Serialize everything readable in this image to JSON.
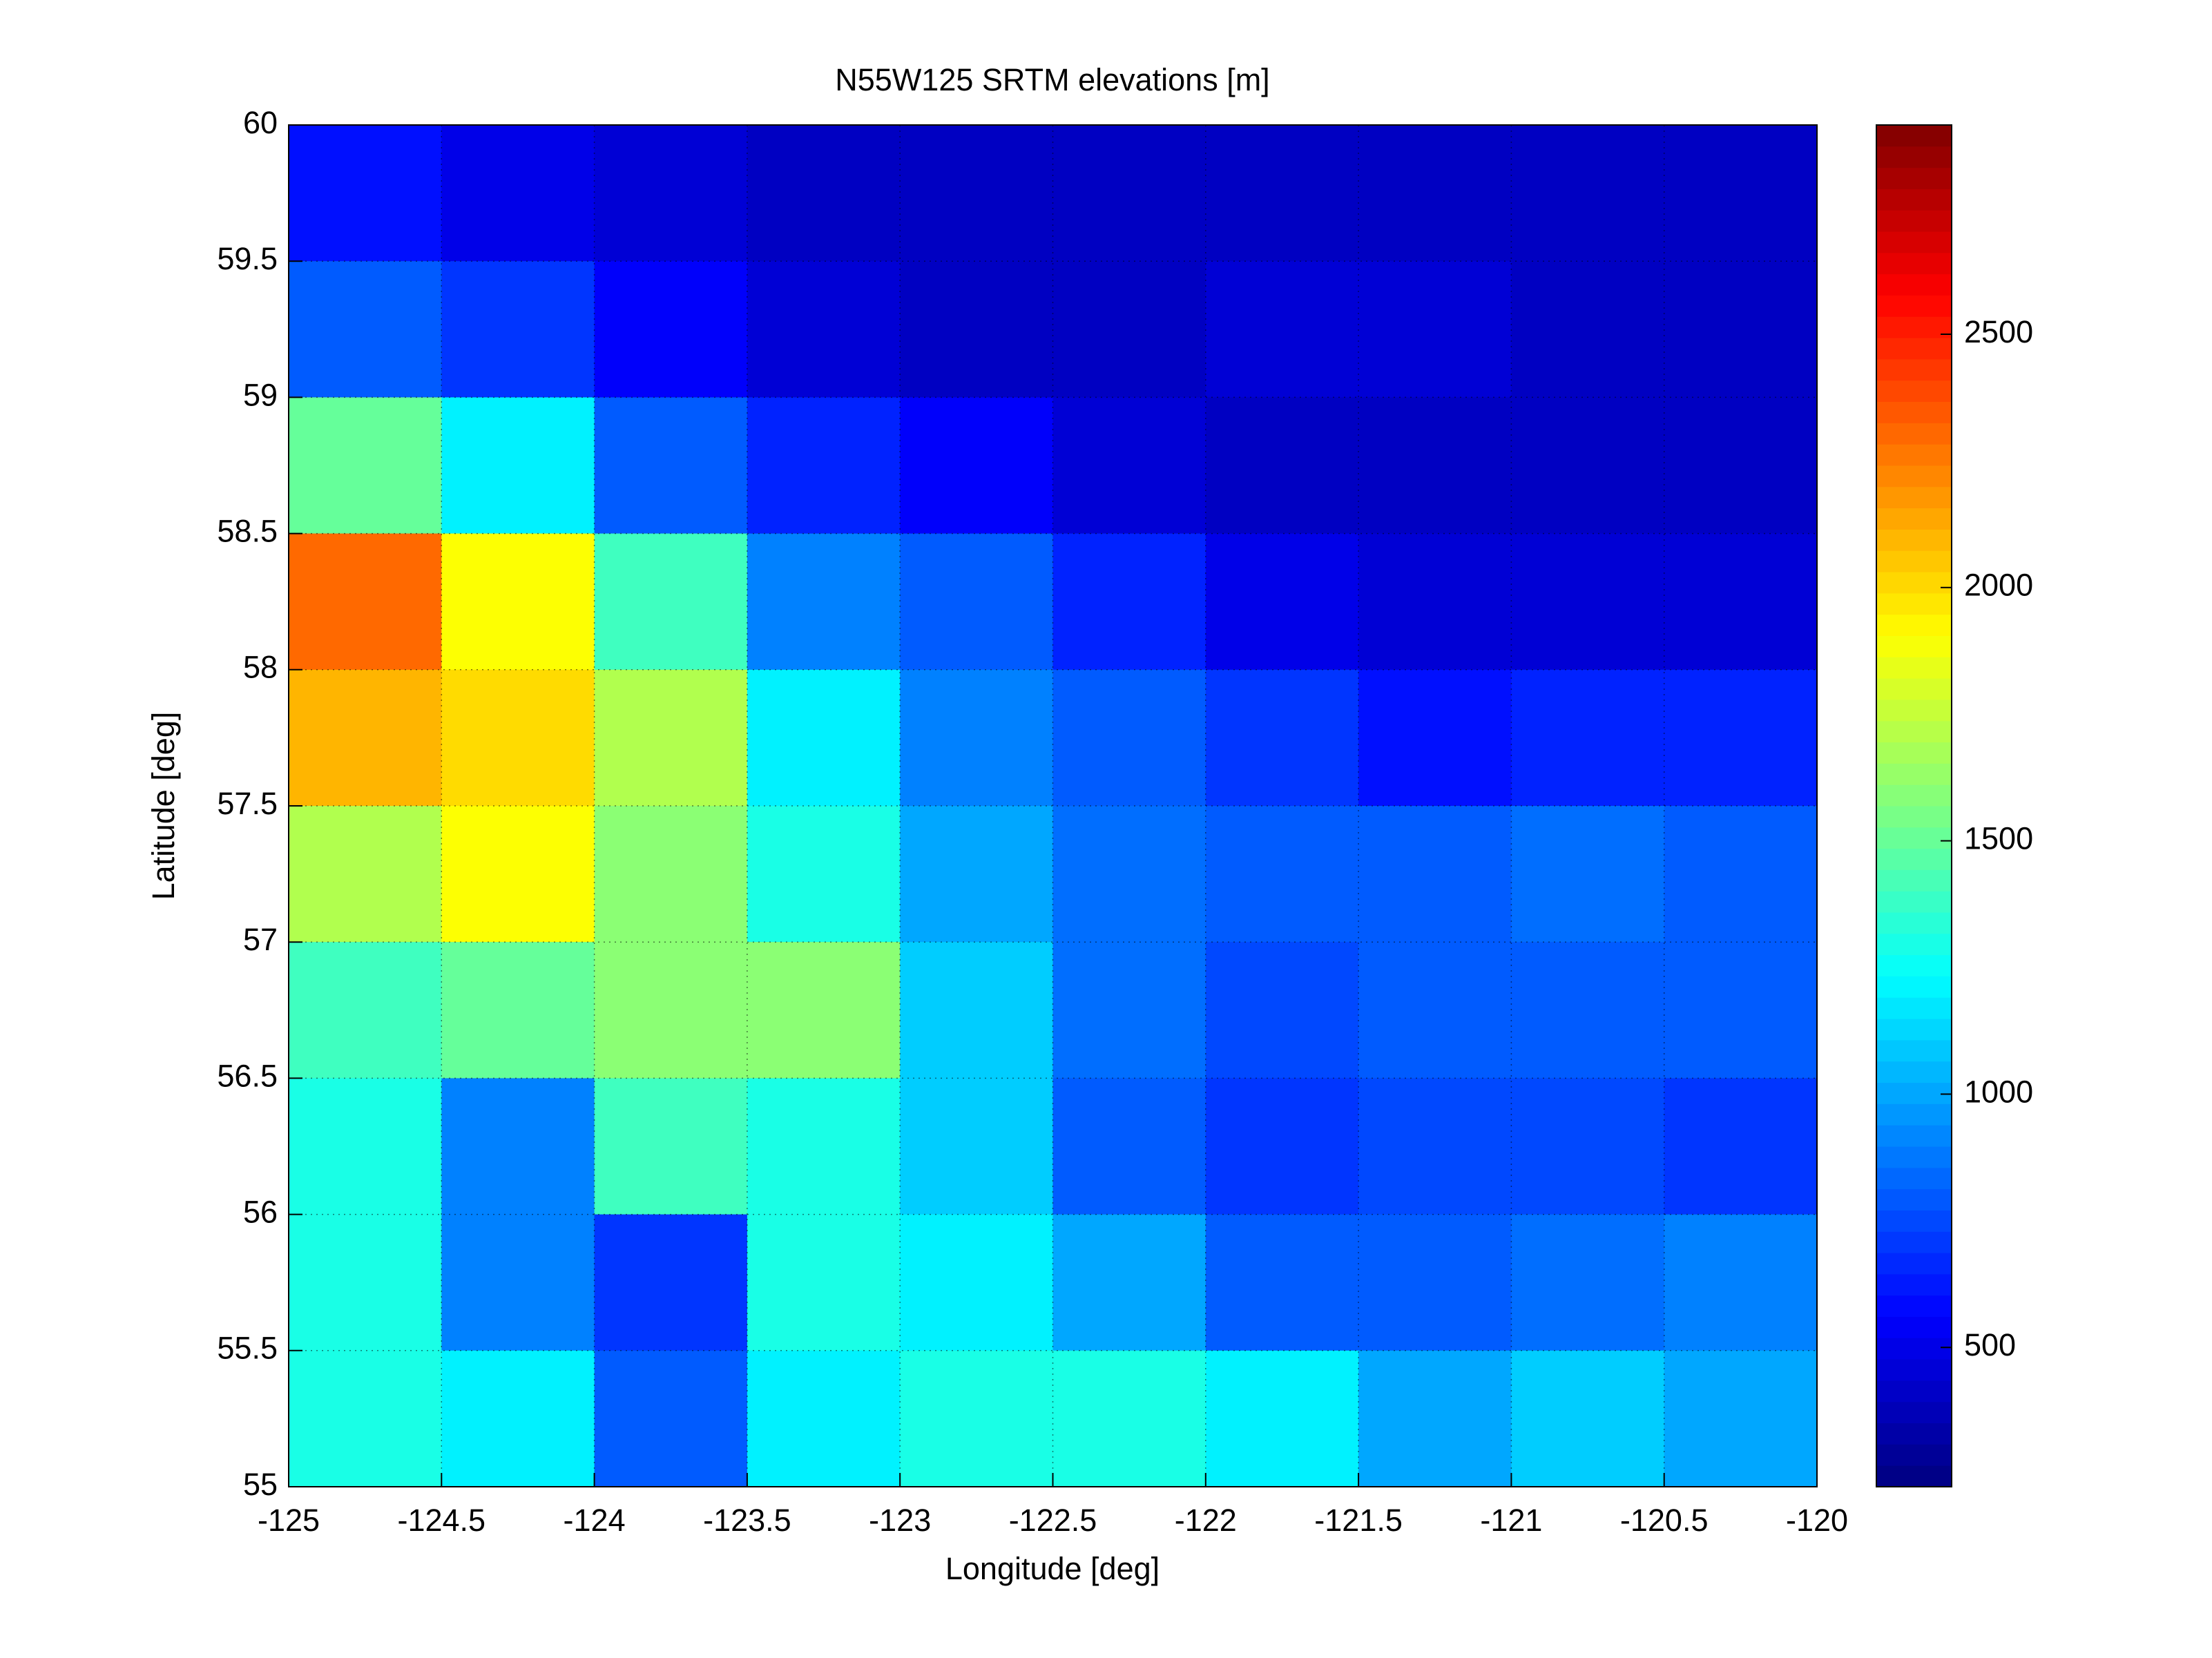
{
  "chart_data": {
    "type": "heatmap",
    "title": "N55W125 SRTM elevations [m]",
    "x_label": "Longitude [deg]",
    "y_label": "Latitude [deg]",
    "xlim": [
      -125,
      -120
    ],
    "xticks": [
      -125,
      -124.5,
      -124,
      -123.5,
      -123,
      -122.5,
      -122,
      -121.5,
      -121,
      -120.5,
      -120
    ],
    "ylim": [
      55,
      60
    ],
    "yticks": [
      55,
      55.5,
      56,
      56.5,
      57,
      57.5,
      58,
      58.5,
      59,
      59.5,
      60
    ],
    "grid": true,
    "colormap": "jet",
    "clim": [
      225,
      2913
    ],
    "cticks": [
      500,
      1000,
      1500,
      2000,
      2500
    ],
    "z": [
      [
        600,
        500,
        450,
        400,
        400,
        400,
        400,
        400,
        400,
        400
      ],
      [
        800,
        700,
        550,
        450,
        400,
        400,
        450,
        450,
        400,
        400
      ],
      [
        1500,
        1200,
        800,
        650,
        550,
        450,
        400,
        400,
        400,
        400
      ],
      [
        2300,
        1900,
        1400,
        900,
        800,
        650,
        500,
        450,
        450,
        450
      ],
      [
        2100,
        2000,
        1700,
        1200,
        900,
        800,
        700,
        600,
        650,
        650
      ],
      [
        1700,
        1900,
        1600,
        1300,
        1000,
        850,
        800,
        800,
        850,
        800
      ],
      [
        1400,
        1500,
        1600,
        1600,
        1100,
        850,
        750,
        800,
        800,
        800
      ],
      [
        1300,
        900,
        1400,
        1300,
        1100,
        800,
        700,
        750,
        750,
        700
      ],
      [
        1300,
        900,
        700,
        1300,
        1200,
        1000,
        800,
        800,
        850,
        900
      ],
      [
        1300,
        1200,
        800,
        1200,
        1300,
        1300,
        1200,
        1000,
        1100,
        1000
      ]
    ]
  }
}
